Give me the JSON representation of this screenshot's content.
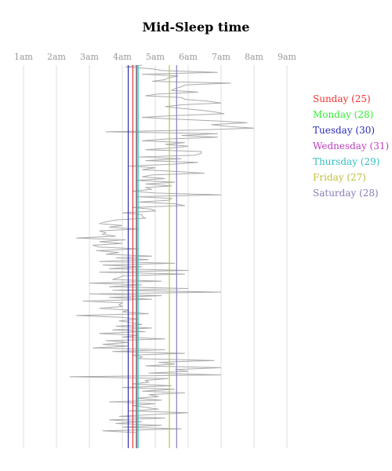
{
  "chart_data": {
    "type": "line",
    "title": "Mid-Sleep time",
    "x_axis": {
      "ticks": [
        "1am",
        "2am",
        "3am",
        "4am",
        "5am",
        "6am",
        "7am",
        "8am",
        "9am"
      ],
      "range_hours": [
        1,
        9
      ],
      "grid": true,
      "position": "top"
    },
    "y_axis": {
      "label": "",
      "direction": "nights top to bottom"
    },
    "trace": {
      "color": "#aaaaaa",
      "values_hours": [
        4.6,
        4.1,
        4.9,
        5.2,
        6.9,
        4.6,
        5.7,
        5.4,
        5.3,
        4.9,
        7.3,
        5.9,
        5.8,
        5.6,
        5.5,
        6.3,
        5.1,
        4.7,
        5.8,
        5.9,
        6.6,
        7.0,
        5.8,
        5.3,
        5.8,
        6.4,
        6.8,
        7.1,
        5.6,
        4.6,
        5.6,
        6.9,
        7.8,
        6.7,
        7.2,
        8.0,
        6.3,
        3.5,
        6.9,
        5.8,
        6.9,
        5.3,
        4.6,
        5.9,
        5.3,
        6.0,
        5.5,
        4.7,
        6.4,
        6.4,
        6.2,
        4.5,
        5.8,
        4.7,
        6.3,
        5.5,
        4.2,
        5.0,
        4.6,
        5.6,
        6.5,
        4.9,
        4.6,
        5.3,
        4.4,
        5.6,
        4.7,
        5.5,
        4.7,
        4.9,
        4.3,
        5.0,
        7.0,
        4.4,
        5.5,
        5.4,
        4.5,
        5.6,
        5.9,
        4.3,
        4.9,
        5.0,
        4.0,
        4.6,
        4.6,
        4.7,
        3.8,
        3.5,
        3.3,
        4.0,
        3.6,
        4.5,
        3.3,
        3.5,
        3.4,
        3.8,
        2.6,
        4.1,
        3.3,
        4.0,
        3.1,
        3.3,
        4.5,
        3.2,
        3.9,
        3.5,
        4.9,
        3.8,
        4.8,
        3.3,
        5.6,
        3.4,
        4.6,
        3.6,
        6.0,
        3.3,
        5.9,
        4.0,
        3.9,
        3.7,
        5.2,
        3.0,
        4.6,
        3.6,
        6.0,
        3.7,
        7.0,
        3.0,
        5.2,
        3.6,
        4.9,
        2.8,
        4.0,
        3.9,
        4.0,
        3.3,
        4.2,
        4.0,
        4.8,
        2.6,
        4.0,
        4.5,
        3.9,
        4.3,
        4.6,
        3.8,
        4.9,
        3.7,
        4.7,
        3.3,
        4.5,
        4.0,
        5.3,
        3.5,
        4.2,
        3.4,
        4.2,
        3.1,
        5.3,
        3.7,
        5.9,
        4.3,
        4.6,
        4.5,
        6.8,
        5.1,
        5.6,
        4.7,
        7.0,
        5.6,
        6.0,
        4.8,
        7.0,
        2.4,
        5.4,
        4.7,
        4.8,
        4.3,
        5.5,
        4.0,
        5.6,
        4.6,
        5.9,
        4.8,
        5.1,
        4.4,
        5.2,
        3.6,
        5.0,
        4.3,
        4.7,
        5.1,
        4.2,
        6.0,
        4.9,
        3.9,
        5.3,
        3.6,
        4.6,
        3.8,
        5.2,
        4.0,
        5.8,
        3.4,
        4.4
      ]
    },
    "series": [
      {
        "name": "Sunday (25)",
        "color": "#ee3333",
        "value_hours": 4.32
      },
      {
        "name": "Monday (28)",
        "color": "#33ee33",
        "value_hours": 4.42
      },
      {
        "name": "Tuesday (30)",
        "color": "#2a2ab8",
        "value_hours": 4.18
      },
      {
        "name": "Wednesday (31)",
        "color": "#c040c0",
        "value_hours": 4.44
      },
      {
        "name": "Thursday (29)",
        "color": "#33c0c0",
        "value_hours": 4.48
      },
      {
        "name": "Friday (27)",
        "color": "#c0c040",
        "value_hours": 5.43
      },
      {
        "name": "Saturday (28)",
        "color": "#8a7ab8",
        "value_hours": 5.65
      }
    ],
    "legend": {
      "placement": "right"
    }
  }
}
